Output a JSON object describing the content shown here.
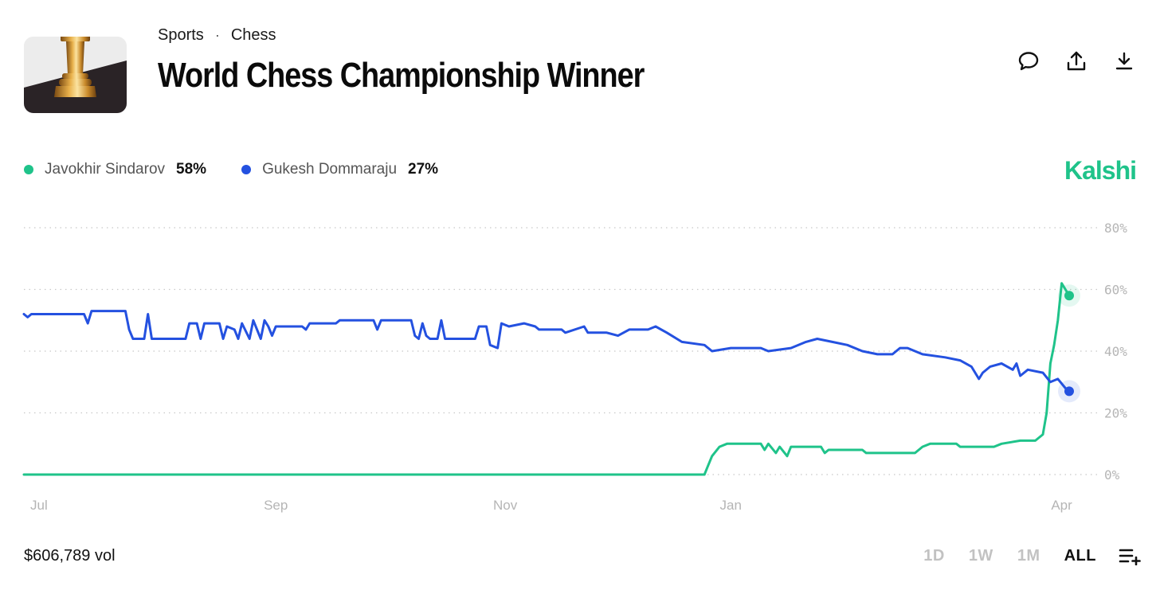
{
  "breadcrumb": {
    "category": "Sports",
    "separator": "·",
    "subcategory": "Chess"
  },
  "title": "World Chess Championship Winner",
  "icons": {
    "market": "chess-rook-icon",
    "comment": "comment-icon",
    "share": "share-icon",
    "download": "download-icon",
    "list": "list-add-icon"
  },
  "colors": {
    "green": "#1fc38a",
    "blue": "#2451e0",
    "brand": "#1fc38a",
    "grid": "#c8c8c8",
    "muted": "#b5b5b5"
  },
  "legend": [
    {
      "name": "Javokhir Sindarov",
      "value": "58%"
    },
    {
      "name": "Gukesh Dommaraju",
      "value": "27%"
    }
  ],
  "brand": "Kalshi",
  "footer": {
    "volume": "$606,789 vol"
  },
  "range_tabs": [
    {
      "label": "1D",
      "active": false
    },
    {
      "label": "1W",
      "active": false
    },
    {
      "label": "1M",
      "active": false
    },
    {
      "label": "ALL",
      "active": true
    }
  ],
  "chart_data": {
    "type": "line",
    "x_labels": [
      "Jul",
      "Sep",
      "Nov",
      "Jan",
      "Apr"
    ],
    "y_ticks": [
      "0%",
      "20%",
      "40%",
      "60%",
      "80%"
    ],
    "ylim": [
      0,
      80
    ],
    "grid": true,
    "legend_position": "top-left",
    "series": [
      {
        "name": "Javokhir Sindarov",
        "color": "#1fc38a",
        "final": 58,
        "points": [
          [
            "2025-06-30",
            0
          ],
          [
            "2025-12-28",
            0
          ],
          [
            "2025-12-29",
            3
          ],
          [
            "2025-12-30",
            6
          ],
          [
            "2026-01-01",
            9
          ],
          [
            "2026-01-03",
            10
          ],
          [
            "2026-01-12",
            10
          ],
          [
            "2026-01-13",
            8
          ],
          [
            "2026-01-14",
            10
          ],
          [
            "2026-01-16",
            7
          ],
          [
            "2026-01-17",
            9
          ],
          [
            "2026-01-19",
            6
          ],
          [
            "2026-01-20",
            9
          ],
          [
            "2026-01-28",
            9
          ],
          [
            "2026-01-29",
            7
          ],
          [
            "2026-01-30",
            8
          ],
          [
            "2026-02-08",
            8
          ],
          [
            "2026-02-09",
            7
          ],
          [
            "2026-02-22",
            7
          ],
          [
            "2026-02-24",
            9
          ],
          [
            "2026-02-26",
            10
          ],
          [
            "2026-03-05",
            10
          ],
          [
            "2026-03-06",
            9
          ],
          [
            "2026-03-15",
            9
          ],
          [
            "2026-03-17",
            10
          ],
          [
            "2026-03-22",
            11
          ],
          [
            "2026-03-26",
            11
          ],
          [
            "2026-03-28",
            13
          ],
          [
            "2026-03-29",
            20
          ],
          [
            "2026-03-30",
            36
          ],
          [
            "2026-03-31",
            42
          ],
          [
            "2026-04-01",
            50
          ],
          [
            "2026-04-02",
            62
          ],
          [
            "2026-04-03",
            60
          ],
          [
            "2026-04-04",
            58
          ]
        ]
      },
      {
        "name": "Gukesh Dommaraju",
        "color": "#2451e0",
        "final": 27,
        "points": [
          [
            "2025-06-30",
            52
          ],
          [
            "2025-07-01",
            51
          ],
          [
            "2025-07-02",
            52
          ],
          [
            "2025-07-16",
            52
          ],
          [
            "2025-07-17",
            49
          ],
          [
            "2025-07-18",
            53
          ],
          [
            "2025-07-27",
            53
          ],
          [
            "2025-07-28",
            47
          ],
          [
            "2025-07-29",
            44
          ],
          [
            "2025-08-01",
            44
          ],
          [
            "2025-08-02",
            52
          ],
          [
            "2025-08-03",
            44
          ],
          [
            "2025-08-12",
            44
          ],
          [
            "2025-08-13",
            49
          ],
          [
            "2025-08-15",
            49
          ],
          [
            "2025-08-16",
            44
          ],
          [
            "2025-08-17",
            49
          ],
          [
            "2025-08-21",
            49
          ],
          [
            "2025-08-22",
            44
          ],
          [
            "2025-08-23",
            48
          ],
          [
            "2025-08-25",
            47
          ],
          [
            "2025-08-26",
            44
          ],
          [
            "2025-08-27",
            49
          ],
          [
            "2025-08-29",
            44
          ],
          [
            "2025-08-30",
            50
          ],
          [
            "2025-09-01",
            44
          ],
          [
            "2025-09-02",
            50
          ],
          [
            "2025-09-03",
            48
          ],
          [
            "2025-09-04",
            45
          ],
          [
            "2025-09-05",
            48
          ],
          [
            "2025-09-12",
            48
          ],
          [
            "2025-09-13",
            47
          ],
          [
            "2025-09-14",
            49
          ],
          [
            "2025-09-21",
            49
          ],
          [
            "2025-09-22",
            50
          ],
          [
            "2025-10-01",
            50
          ],
          [
            "2025-10-02",
            47
          ],
          [
            "2025-10-03",
            50
          ],
          [
            "2025-10-11",
            50
          ],
          [
            "2025-10-12",
            45
          ],
          [
            "2025-10-13",
            44
          ],
          [
            "2025-10-14",
            49
          ],
          [
            "2025-10-15",
            45
          ],
          [
            "2025-10-16",
            44
          ],
          [
            "2025-10-18",
            44
          ],
          [
            "2025-10-19",
            50
          ],
          [
            "2025-10-20",
            44
          ],
          [
            "2025-10-28",
            44
          ],
          [
            "2025-10-29",
            48
          ],
          [
            "2025-10-31",
            48
          ],
          [
            "2025-11-01",
            42
          ],
          [
            "2025-11-03",
            41
          ],
          [
            "2025-11-04",
            49
          ],
          [
            "2025-11-06",
            48
          ],
          [
            "2025-11-10",
            49
          ],
          [
            "2025-11-13",
            48
          ],
          [
            "2025-11-14",
            47
          ],
          [
            "2025-11-20",
            47
          ],
          [
            "2025-11-21",
            46
          ],
          [
            "2025-11-26",
            48
          ],
          [
            "2025-11-27",
            46
          ],
          [
            "2025-12-02",
            46
          ],
          [
            "2025-12-05",
            45
          ],
          [
            "2025-12-08",
            47
          ],
          [
            "2025-12-13",
            47
          ],
          [
            "2025-12-15",
            48
          ],
          [
            "2025-12-18",
            46
          ],
          [
            "2025-12-22",
            43
          ],
          [
            "2025-12-28",
            42
          ],
          [
            "2025-12-30",
            40
          ],
          [
            "2026-01-04",
            41
          ],
          [
            "2026-01-12",
            41
          ],
          [
            "2026-01-14",
            40
          ],
          [
            "2026-01-20",
            41
          ],
          [
            "2026-01-24",
            43
          ],
          [
            "2026-01-27",
            44
          ],
          [
            "2026-01-31",
            43
          ],
          [
            "2026-02-04",
            42
          ],
          [
            "2026-02-08",
            40
          ],
          [
            "2026-02-12",
            39
          ],
          [
            "2026-02-16",
            39
          ],
          [
            "2026-02-18",
            41
          ],
          [
            "2026-02-20",
            41
          ],
          [
            "2026-02-24",
            39
          ],
          [
            "2026-03-02",
            38
          ],
          [
            "2026-03-06",
            37
          ],
          [
            "2026-03-09",
            35
          ],
          [
            "2026-03-11",
            31
          ],
          [
            "2026-03-12",
            33
          ],
          [
            "2026-03-14",
            35
          ],
          [
            "2026-03-17",
            36
          ],
          [
            "2026-03-20",
            34
          ],
          [
            "2026-03-21",
            36
          ],
          [
            "2026-03-22",
            32
          ],
          [
            "2026-03-24",
            34
          ],
          [
            "2026-03-28",
            33
          ],
          [
            "2026-03-30",
            30
          ],
          [
            "2026-04-01",
            31
          ],
          [
            "2026-04-03",
            28
          ],
          [
            "2026-04-04",
            27
          ]
        ]
      }
    ]
  }
}
